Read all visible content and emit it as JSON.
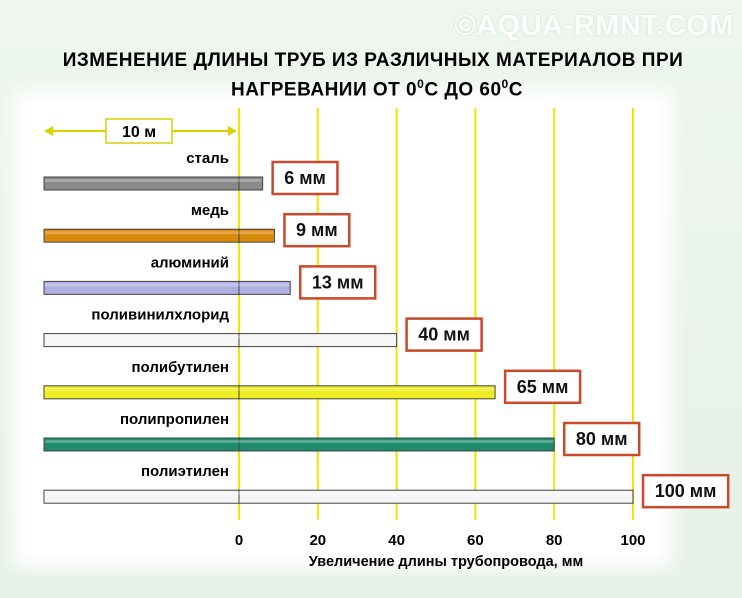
{
  "watermark": "©AQUA-RMNT.COM",
  "title": {
    "line1": "ИЗМЕНЕНИЕ ДЛИНЫ ТРУБ ИЗ РАЗЛИЧНЫХ МАТЕРИАЛОВ ПРИ",
    "line2_a": "НАГРЕВАНИИ ОТ  0",
    "line2_b": "C  ДО  60",
    "line2_c": "C",
    "sup": "0"
  },
  "reference_label": "10 м",
  "chart_data": {
    "type": "bar",
    "orientation": "horizontal",
    "categories": [
      "сталь",
      "медь",
      "алюминий",
      "поливинилхлорид",
      "полибутилен",
      "полипропилен",
      "полиэтилен"
    ],
    "values": [
      6,
      9,
      13,
      40,
      65,
      80,
      100
    ],
    "value_labels": [
      "6 мм",
      "9 мм",
      "13 мм",
      "40 мм",
      "65 мм",
      "80 мм",
      "100 мм"
    ],
    "colors": [
      "#8a8a8a",
      "#d98a0b",
      "#aeb0e2",
      "#f5f5f5",
      "#eeee22",
      "#1e8c6c",
      "#f5f5f5"
    ],
    "xlabel": "Увеличение длины трубопровода, мм",
    "xlim": [
      0,
      100
    ],
    "xticks": [
      0,
      20,
      40,
      60,
      80,
      100
    ],
    "xtick_labels": [
      "0",
      "20",
      "40",
      "60",
      "80",
      "100"
    ],
    "grid": true,
    "grid_color": "#f0e400",
    "label_box_color": "#c8492c"
  }
}
